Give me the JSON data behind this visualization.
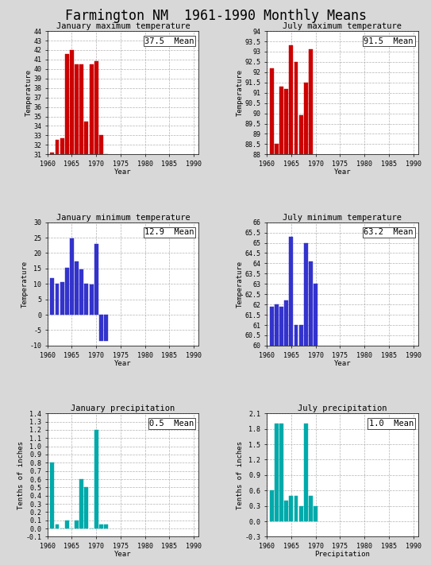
{
  "title": "Farmington NM  1961-1990 Monthly Means",
  "title_fontsize": 12,
  "subplots": [
    {
      "title": "January maximum temperature",
      "ylabel": "Temperature",
      "xlabel": "Year",
      "mean_label": "37.5  Mean",
      "color": "#cc0000",
      "ylim": [
        31,
        44
      ],
      "yticks": [
        31,
        32,
        33,
        34,
        35,
        36,
        37,
        38,
        39,
        40,
        41,
        42,
        43,
        44
      ],
      "ytick_labels": [
        "31",
        "32",
        "33",
        "34",
        "35",
        "36",
        "37",
        "38",
        "39",
        "40",
        "41",
        "42",
        "43",
        "44"
      ],
      "years": [
        1961,
        1962,
        1963,
        1964,
        1965,
        1966,
        1967,
        1968,
        1969,
        1970,
        1971,
        1972
      ],
      "values": [
        31.2,
        32.5,
        32.7,
        41.6,
        42.0,
        40.5,
        40.5,
        34.5,
        40.5,
        40.8,
        33.0,
        31.0
      ]
    },
    {
      "title": "July maximum temperature",
      "ylabel": "Temperature",
      "xlabel": "Year",
      "mean_label": "91.5  Mean",
      "color": "#cc0000",
      "ylim": [
        88,
        94
      ],
      "yticks": [
        88,
        88.5,
        89,
        89.5,
        90,
        90.5,
        91,
        91.5,
        92,
        92.5,
        93,
        93.5,
        94
      ],
      "ytick_labels": [
        "88",
        "88.5",
        "89",
        "89.5",
        "90",
        "90.5",
        "91",
        "91.5",
        "92",
        "92.5",
        "93",
        "93.5",
        "94"
      ],
      "years": [
        1961,
        1962,
        1963,
        1964,
        1965,
        1966,
        1967,
        1968,
        1969
      ],
      "values": [
        92.2,
        88.5,
        91.3,
        91.2,
        93.3,
        92.5,
        89.9,
        91.5,
        93.1
      ]
    },
    {
      "title": "January minimum temperature",
      "ylabel": "Temperature",
      "xlabel": "Year",
      "mean_label": "12.9  Mean",
      "color": "#3333cc",
      "ylim": [
        -10,
        30
      ],
      "yticks": [
        -10,
        -5,
        0,
        5,
        10,
        15,
        20,
        25,
        30
      ],
      "ytick_labels": [
        "-10",
        "-5",
        "0",
        "5",
        "10",
        "15",
        "20",
        "25",
        "30"
      ],
      "years": [
        1961,
        1962,
        1963,
        1964,
        1965,
        1966,
        1967,
        1968,
        1969,
        1970,
        1971,
        1972
      ],
      "values": [
        12.0,
        10.2,
        10.6,
        15.2,
        24.7,
        17.3,
        14.8,
        10.0,
        9.9,
        23.0,
        -8.5,
        -8.5
      ]
    },
    {
      "title": "July minimum temperature",
      "ylabel": "Temperature",
      "xlabel": "Year",
      "mean_label": "63.2  Mean",
      "color": "#3333cc",
      "ylim": [
        60,
        66
      ],
      "yticks": [
        60,
        60.5,
        61,
        61.5,
        62,
        62.5,
        63,
        63.5,
        64,
        64.5,
        65,
        65.5,
        66
      ],
      "ytick_labels": [
        "60",
        "60.5",
        "61",
        "61.5",
        "62",
        "62.5",
        "63",
        "63.5",
        "64",
        "64.5",
        "65",
        "65.5",
        "66"
      ],
      "years": [
        1961,
        1962,
        1963,
        1964,
        1965,
        1966,
        1967,
        1968,
        1969,
        1970
      ],
      "values": [
        61.9,
        62.0,
        61.9,
        62.2,
        65.3,
        61.0,
        61.0,
        65.0,
        64.1,
        63.0
      ]
    },
    {
      "title": "January precipitation",
      "ylabel": "Tenths of inches",
      "xlabel": "Year",
      "mean_label": "0.5  Mean",
      "color": "#00aaaa",
      "ylim": [
        -0.1,
        1.4
      ],
      "yticks": [
        -0.1,
        0.0,
        0.1,
        0.2,
        0.3,
        0.4,
        0.5,
        0.6,
        0.7,
        0.8,
        0.9,
        1.0,
        1.1,
        1.2,
        1.3,
        1.4
      ],
      "ytick_labels": [
        "-0.1",
        "0.0",
        "0.1",
        "0.2",
        "0.3",
        "0.4",
        "0.5",
        "0.6",
        "0.7",
        "0.8",
        "0.9",
        "1.0",
        "1.1",
        "1.2",
        "1.3",
        "1.4"
      ],
      "years": [
        1961,
        1962,
        1963,
        1964,
        1965,
        1966,
        1967,
        1968,
        1969,
        1970,
        1971,
        1972
      ],
      "values": [
        0.8,
        0.05,
        0.0,
        0.1,
        0.0,
        0.1,
        0.6,
        0.5,
        0.0,
        1.2,
        0.05,
        0.05
      ]
    },
    {
      "title": "July precipitation",
      "ylabel": "Tenths of inches",
      "xlabel": "Precipitation",
      "mean_label": "1.0  Mean",
      "color": "#00aaaa",
      "ylim": [
        -0.3,
        2.1
      ],
      "yticks": [
        -0.3,
        0.0,
        0.3,
        0.6,
        0.9,
        1.2,
        1.5,
        1.8,
        2.1
      ],
      "ytick_labels": [
        "-0.3",
        "0.0",
        "0.3",
        "0.6",
        "0.9",
        "1.2",
        "1.5",
        "1.8",
        "2.1"
      ],
      "years": [
        1961,
        1962,
        1963,
        1964,
        1965,
        1966,
        1967,
        1968,
        1969,
        1970
      ],
      "values": [
        0.6,
        1.9,
        1.9,
        0.4,
        0.5,
        0.5,
        0.3,
        1.9,
        0.5,
        0.3
      ]
    }
  ],
  "bg_color": "#d8d8d8",
  "plot_bg_color": "#ffffff",
  "xticks": [
    1960,
    1965,
    1970,
    1975,
    1980,
    1985,
    1990
  ],
  "xlim": [
    1960,
    1991
  ]
}
